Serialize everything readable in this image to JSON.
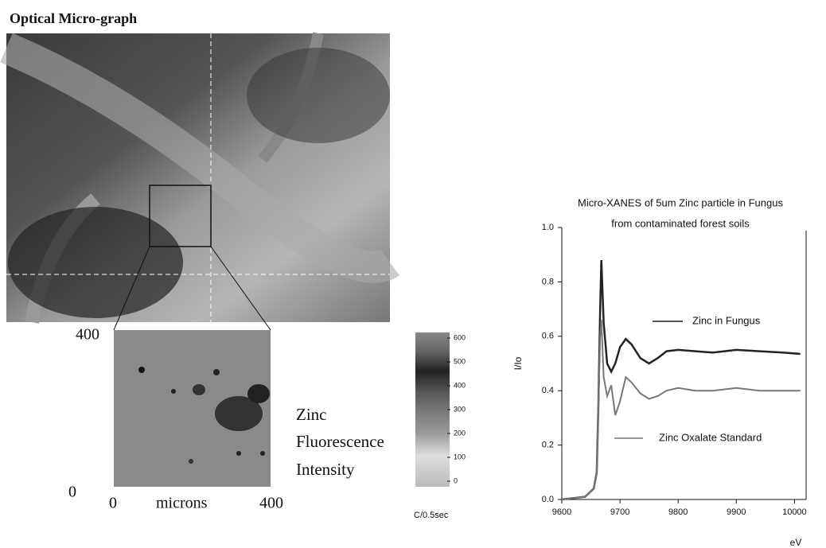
{
  "micrograph": {
    "title": "Optical Micro-graph"
  },
  "map": {
    "y_max_label": "400",
    "y_min_label": "0",
    "x_min_label": "0",
    "x_max_label": "400",
    "x_label": "microns",
    "caption": [
      "Zinc",
      "Fluorescence",
      "Intensity"
    ]
  },
  "colorbar": {
    "ticks": [
      0,
      100,
      200,
      300,
      400,
      500,
      600
    ],
    "unit": "C/0.5sec"
  },
  "chart_data": {
    "type": "line",
    "title": "Micro-XANES of 5um Zinc particle in Fungus",
    "subtitle": "from contaminated forest soils",
    "x_label": "eV",
    "y_label": "I/Io",
    "x": [
      9600,
      9640,
      9655,
      9660,
      9663,
      9666,
      9668,
      9672,
      9678,
      9685,
      9692,
      9700,
      9710,
      9720,
      9735,
      9750,
      9765,
      9780,
      9800,
      9830,
      9860,
      9900,
      9940,
      9980,
      10010
    ],
    "series": [
      {
        "name": "Zinc in Fungus",
        "color": "#222222",
        "values": [
          0,
          0.01,
          0.04,
          0.1,
          0.35,
          0.7,
          0.88,
          0.65,
          0.5,
          0.47,
          0.5,
          0.56,
          0.59,
          0.57,
          0.52,
          0.5,
          0.52,
          0.545,
          0.55,
          0.545,
          0.54,
          0.55,
          0.545,
          0.54,
          0.535
        ]
      },
      {
        "name": "Zinc Oxalate Standard",
        "color": "#777777",
        "values": [
          0,
          0.01,
          0.04,
          0.1,
          0.35,
          0.6,
          0.66,
          0.45,
          0.38,
          0.42,
          0.31,
          0.36,
          0.45,
          0.43,
          0.39,
          0.37,
          0.38,
          0.4,
          0.41,
          0.4,
          0.4,
          0.41,
          0.4,
          0.4,
          0.4
        ]
      }
    ],
    "xlim": [
      9600,
      10020
    ],
    "xticks": [
      9600,
      9700,
      9800,
      9900,
      10000
    ],
    "ylim": [
      0,
      1
    ],
    "yticks": [
      {
        "value": 0,
        "label": "0.0"
      },
      0.2,
      0.4,
      0.6,
      0.8,
      {
        "value": 1,
        "label": "1.0"
      }
    ]
  }
}
